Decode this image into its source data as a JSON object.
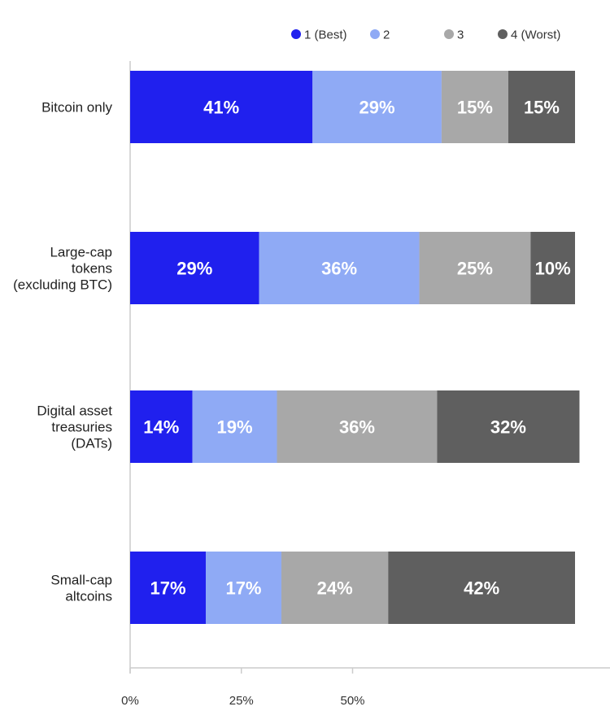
{
  "chart_data": {
    "type": "bar",
    "orientation": "horizontal",
    "stacked": true,
    "categories": [
      [
        "Bitcoin only"
      ],
      [
        "Large-cap",
        "tokens",
        "(excluding BTC)"
      ],
      [
        "Digital asset",
        "treasuries",
        "(DATs)"
      ],
      [
        "Small-cap",
        "altcoins"
      ]
    ],
    "series": [
      {
        "name": "1 (Best)",
        "color": "#2020ee",
        "values": [
          41,
          29,
          14,
          17
        ]
      },
      {
        "name": "2",
        "color": "#8faaf5",
        "values": [
          29,
          36,
          19,
          17
        ]
      },
      {
        "name": "3",
        "color": "#a8a8a8",
        "values": [
          15,
          25,
          36,
          24
        ]
      },
      {
        "name": "4 (Worst)",
        "color": "#5f5f5f",
        "values": [
          15,
          10,
          32,
          42
        ]
      }
    ],
    "data_labels": [
      [
        "41%",
        "29%",
        "15%",
        "15%"
      ],
      [
        "29%",
        "36%",
        "25%",
        "10%"
      ],
      [
        "14%",
        "19%",
        "36%",
        "32%"
      ],
      [
        "17%",
        "17%",
        "24%",
        "42%"
      ]
    ],
    "x_ticks": [
      {
        "value": 0,
        "label": "0%"
      },
      {
        "value": 25,
        "label": "25%"
      },
      {
        "value": 50,
        "label": "50%"
      }
    ],
    "xlim": [
      0,
      100
    ],
    "legend_position": "top-right",
    "grid": false
  }
}
